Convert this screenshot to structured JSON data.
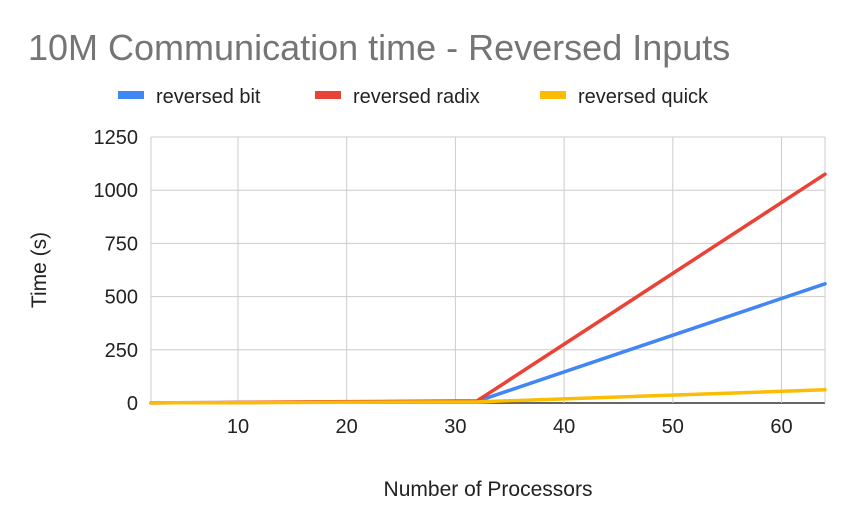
{
  "chart_data": {
    "type": "line",
    "title": "10M Communication time - Reversed Inputs",
    "xlabel": "Number of Processors",
    "ylabel": "Time (s)",
    "xlim": [
      2,
      64
    ],
    "ylim": [
      0,
      1250
    ],
    "x_ticks": [
      10,
      20,
      30,
      40,
      50,
      60
    ],
    "y_ticks": [
      0,
      250,
      500,
      750,
      1000,
      1250
    ],
    "grid": true,
    "legend_position": "top",
    "x": [
      2,
      4,
      8,
      16,
      32,
      64
    ],
    "series": [
      {
        "name": "reversed bit",
        "color": "#4285f4",
        "values": [
          0.5,
          1,
          2,
          4,
          8,
          560
        ]
      },
      {
        "name": "reversed radix",
        "color": "#ea4335",
        "values": [
          0.5,
          1,
          2,
          5,
          10,
          1075
        ]
      },
      {
        "name": "reversed quick",
        "color": "#fbbc04",
        "values": [
          0.5,
          1,
          1.5,
          3,
          5,
          62
        ]
      }
    ]
  }
}
